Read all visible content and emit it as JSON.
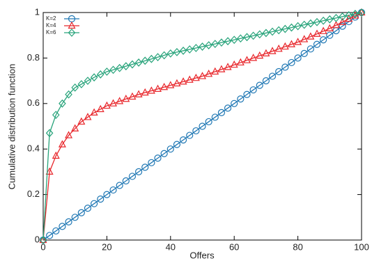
{
  "chart_data": {
    "type": "line",
    "x_label": "Offers",
    "y_label": "Cumulative distribution function",
    "x": [
      0,
      2,
      4,
      6,
      8,
      10,
      12,
      14,
      16,
      18,
      20,
      22,
      24,
      26,
      28,
      30,
      32,
      34,
      36,
      38,
      40,
      42,
      44,
      46,
      48,
      50,
      52,
      54,
      56,
      58,
      60,
      62,
      64,
      66,
      68,
      70,
      72,
      74,
      76,
      78,
      80,
      82,
      84,
      86,
      88,
      90,
      92,
      94,
      96,
      98,
      100
    ],
    "series": [
      {
        "name": "K=2",
        "color": "#1f77b4",
        "marker": "circle",
        "values": [
          0,
          0.02,
          0.04,
          0.06,
          0.08,
          0.1,
          0.12,
          0.14,
          0.16,
          0.18,
          0.2,
          0.22,
          0.24,
          0.26,
          0.28,
          0.3,
          0.32,
          0.34,
          0.36,
          0.38,
          0.4,
          0.42,
          0.44,
          0.46,
          0.48,
          0.5,
          0.52,
          0.54,
          0.56,
          0.58,
          0.6,
          0.62,
          0.64,
          0.66,
          0.68,
          0.7,
          0.72,
          0.74,
          0.76,
          0.78,
          0.8,
          0.82,
          0.84,
          0.86,
          0.88,
          0.9,
          0.92,
          0.94,
          0.96,
          0.98,
          1
        ]
      },
      {
        "name": "K=4",
        "color": "#e8262b",
        "marker": "triangle",
        "values": [
          0,
          0.3,
          0.37,
          0.42,
          0.46,
          0.49,
          0.52,
          0.54,
          0.56,
          0.575,
          0.59,
          0.6,
          0.61,
          0.62,
          0.63,
          0.64,
          0.648,
          0.656,
          0.664,
          0.672,
          0.68,
          0.688,
          0.696,
          0.704,
          0.712,
          0.72,
          0.73,
          0.74,
          0.75,
          0.76,
          0.77,
          0.78,
          0.79,
          0.8,
          0.81,
          0.82,
          0.83,
          0.84,
          0.85,
          0.86,
          0.87,
          0.882,
          0.894,
          0.906,
          0.918,
          0.93,
          0.944,
          0.958,
          0.972,
          0.986,
          1
        ]
      },
      {
        "name": "K=6",
        "color": "#27a37a",
        "marker": "diamond",
        "values": [
          0,
          0.47,
          0.55,
          0.6,
          0.64,
          0.67,
          0.685,
          0.7,
          0.715,
          0.728,
          0.74,
          0.748,
          0.756,
          0.764,
          0.772,
          0.78,
          0.788,
          0.796,
          0.804,
          0.812,
          0.82,
          0.826,
          0.832,
          0.838,
          0.844,
          0.85,
          0.856,
          0.862,
          0.868,
          0.874,
          0.88,
          0.886,
          0.892,
          0.898,
          0.904,
          0.91,
          0.916,
          0.922,
          0.928,
          0.934,
          0.94,
          0.946,
          0.952,
          0.958,
          0.964,
          0.97,
          0.976,
          0.982,
          0.988,
          0.994,
          1
        ]
      }
    ],
    "xlim": [
      0,
      100
    ],
    "xticks": [
      0,
      20,
      40,
      60,
      80,
      100
    ],
    "ylim": [
      0,
      1
    ],
    "yticks": [
      0,
      0.2,
      0.4,
      0.6,
      0.8,
      1
    ],
    "legend": "upper-left"
  }
}
